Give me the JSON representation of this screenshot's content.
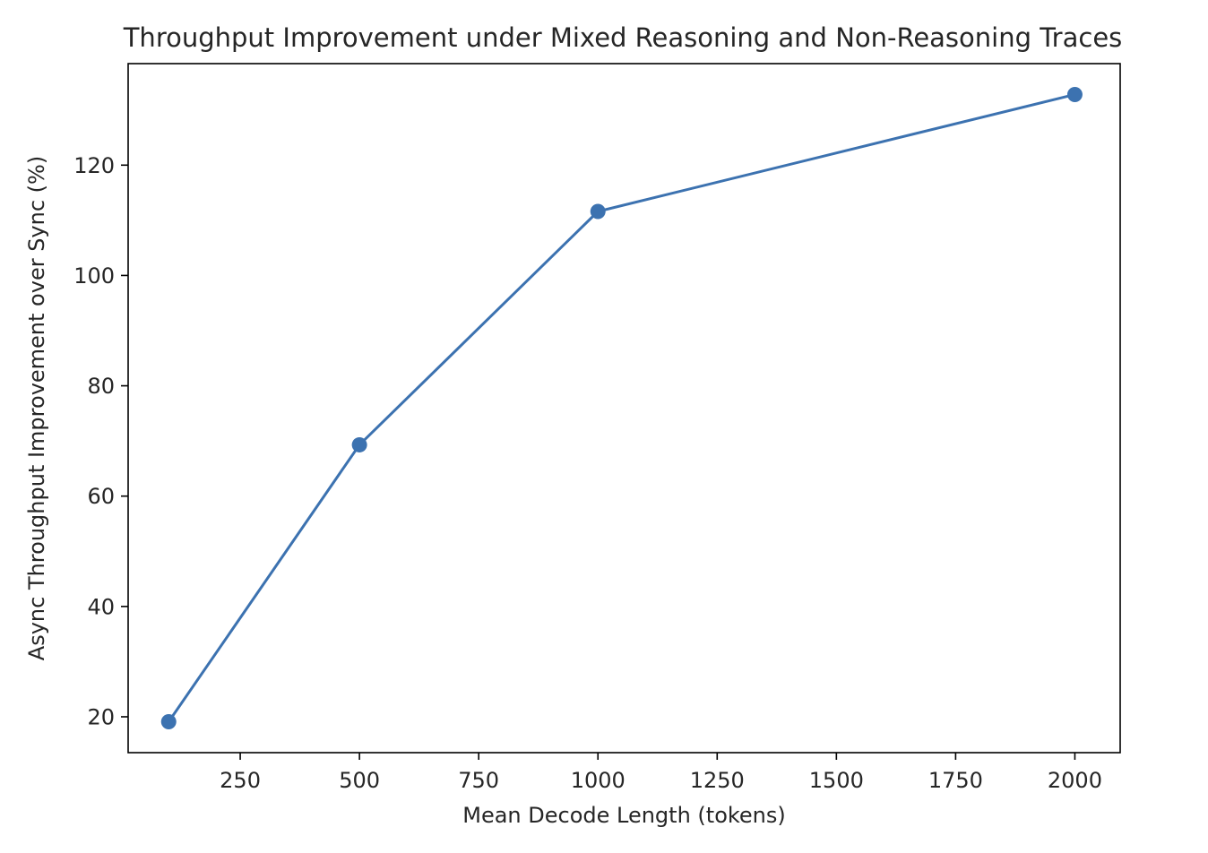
{
  "chart_data": {
    "type": "line",
    "title": "Throughput Improvement under Mixed Reasoning and Non-Reasoning Traces",
    "xlabel": "Mean Decode Length (tokens)",
    "ylabel": "Async Throughput Improvement over Sync (%)",
    "x": [
      100,
      500,
      1000,
      2000
    ],
    "series": [
      {
        "values": [
          19.1,
          69.3,
          111.6,
          132.8
        ],
        "color": "#3c72b0",
        "marker": "circle"
      }
    ],
    "xlim": [
      15,
      2095
    ],
    "ylim": [
      13.5,
      138.4
    ],
    "xticks": [
      250,
      500,
      750,
      1000,
      1250,
      1500,
      1750,
      2000
    ],
    "xtick_labels": [
      "250",
      "500",
      "750",
      "1000",
      "1250",
      "1500",
      "1750",
      "2000"
    ],
    "yticks": [
      20,
      40,
      60,
      80,
      100,
      120
    ],
    "ytick_labels": [
      "20",
      "40",
      "60",
      "80",
      "100",
      "120"
    ],
    "grid": false,
    "legend": "none"
  }
}
